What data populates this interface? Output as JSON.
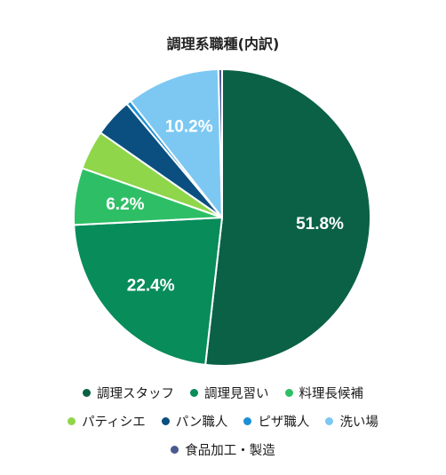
{
  "chart_data": {
    "type": "pie",
    "title": "調理系職種(内訳)",
    "slices": [
      {
        "label": "調理スタッフ",
        "value": 51.8,
        "color": "#0a6146",
        "data_label": "51.8%"
      },
      {
        "label": "調理見習い",
        "value": 22.4,
        "color": "#078c5a",
        "data_label": "22.4%"
      },
      {
        "label": "料理長候補",
        "value": 6.2,
        "color": "#2ebf66",
        "data_label": "6.2%"
      },
      {
        "label": "パティシエ",
        "value": 4.3,
        "color": "#8fd64a",
        "data_label": ""
      },
      {
        "label": "パン職人",
        "value": 4.2,
        "color": "#0a4f80",
        "data_label": ""
      },
      {
        "label": "ピザ職人",
        "value": 0.5,
        "color": "#1c8fd6",
        "data_label": ""
      },
      {
        "label": "洗い場",
        "value": 10.2,
        "color": "#7cc8f2",
        "data_label": "10.2%"
      },
      {
        "label": "食品加工・製造",
        "value": 0.4,
        "color": "#4a5a8f",
        "data_label": ""
      }
    ],
    "start_angle_deg": 0,
    "direction": "clockwise",
    "legend_position": "bottom",
    "legend_rows": [
      [
        0,
        1,
        2
      ],
      [
        3,
        4,
        5,
        6
      ],
      [
        7
      ]
    ]
  }
}
